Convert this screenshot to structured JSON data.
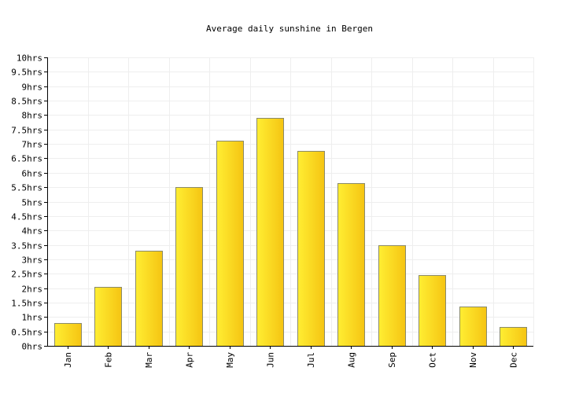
{
  "chart_data": {
    "type": "bar",
    "title": "Average daily sunshine in Bergen",
    "xlabel": "",
    "ylabel": "",
    "categories": [
      "Jan",
      "Feb",
      "Mar",
      "Apr",
      "May",
      "Jun",
      "Jul",
      "Aug",
      "Sep",
      "Oct",
      "Nov",
      "Dec"
    ],
    "values": [
      0.8,
      2.05,
      3.3,
      5.5,
      7.1,
      7.9,
      6.75,
      5.65,
      3.5,
      2.45,
      1.35,
      0.65
    ],
    "unit": "hrs",
    "ylim": [
      0,
      10
    ],
    "yticks": [
      "0hrs",
      "0.5hrs",
      "1hrs",
      "1.5hrs",
      "2hrs",
      "2.5hrs",
      "3hrs",
      "3.5hrs",
      "4hrs",
      "4.5hrs",
      "5hrs",
      "5.5hrs",
      "6hrs",
      "6.5hrs",
      "7hrs",
      "7.5hrs",
      "8hrs",
      "8.5hrs",
      "9hrs",
      "9.5hrs",
      "10hrs"
    ],
    "grid": true,
    "legend": "none",
    "colors": {
      "bar_left": "#ffee33",
      "bar_right": "#f5c412",
      "bar_border": "#8a8a6a",
      "grid": "#eeeeee",
      "axis": "#000000"
    }
  }
}
